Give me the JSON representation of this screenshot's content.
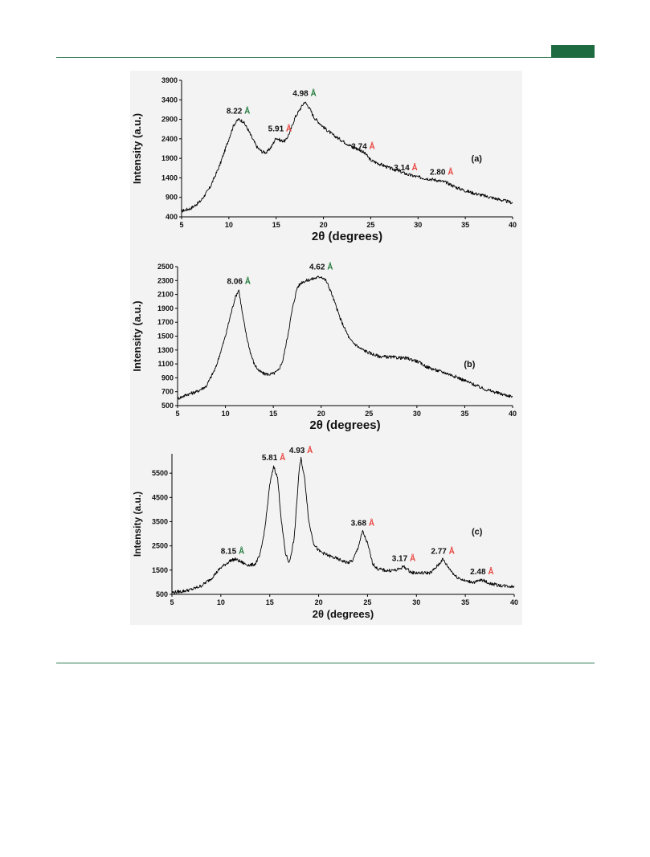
{
  "page": {
    "accent_color": "#1f6b41",
    "rule_color": "#2f7a52"
  },
  "chart_data": [
    {
      "type": "line",
      "panel_label": "(a)",
      "xlabel": "2θ (degrees)",
      "ylabel": "Intensity (a.u.)",
      "xlim": [
        5,
        40
      ],
      "ylim": [
        400,
        3900
      ],
      "xticks": [
        5,
        10,
        15,
        20,
        25,
        30,
        35,
        40
      ],
      "yticks": [
        400,
        900,
        1400,
        1900,
        2400,
        2900,
        3400,
        3900
      ],
      "grid": false,
      "series": [
        {
          "color": "#000000",
          "x": [
            5,
            6,
            7,
            8,
            9,
            10,
            10.5,
            11,
            11.5,
            12,
            12.5,
            13,
            13.5,
            14,
            14.5,
            15,
            15.5,
            16,
            16.5,
            17,
            17.5,
            18,
            18.5,
            19,
            20,
            21,
            22,
            23,
            24,
            24.5,
            25,
            26,
            27,
            28,
            29,
            30,
            31,
            32,
            33,
            34,
            35,
            36,
            37,
            38,
            39,
            40
          ],
          "y": [
            550,
            620,
            800,
            1150,
            1700,
            2400,
            2750,
            2900,
            2850,
            2650,
            2400,
            2180,
            2070,
            2050,
            2200,
            2430,
            2350,
            2350,
            2600,
            2950,
            3150,
            3350,
            3200,
            2950,
            2700,
            2500,
            2350,
            2200,
            2100,
            2000,
            1850,
            1750,
            1650,
            1570,
            1480,
            1420,
            1380,
            1340,
            1280,
            1160,
            1070,
            1000,
            940,
            880,
            820,
            760
          ]
        }
      ],
      "annotations": [
        {
          "x": 11,
          "y": 2900,
          "value": "8.22",
          "unit": "Å",
          "unit_color": "#1f7a3a"
        },
        {
          "x": 15.4,
          "y": 2450,
          "value": "5.91",
          "unit": "Å",
          "unit_color": "#e8403a"
        },
        {
          "x": 18,
          "y": 3350,
          "value": "4.98",
          "unit": "Å",
          "unit_color": "#1f7a3a"
        },
        {
          "x": 24.2,
          "y": 2000,
          "value": "3.74",
          "unit": "Å",
          "unit_color": "#e8403a"
        },
        {
          "x": 28.7,
          "y": 1450,
          "value": "3.14",
          "unit": "Å",
          "unit_color": "#e8403a"
        },
        {
          "x": 32.5,
          "y": 1340,
          "value": "2.80",
          "unit": "Å",
          "unit_color": "#e8403a"
        }
      ]
    },
    {
      "type": "line",
      "panel_label": "(b)",
      "xlabel": "2θ (degrees)",
      "ylabel": "Intensity (a.u.)",
      "xlim": [
        5,
        40
      ],
      "ylim": [
        500,
        2500
      ],
      "xticks": [
        5,
        10,
        15,
        20,
        25,
        30,
        35,
        40
      ],
      "yticks": [
        500,
        700,
        900,
        1100,
        1300,
        1500,
        1700,
        1900,
        2100,
        2300,
        2500
      ],
      "grid": false,
      "series": [
        {
          "color": "#000000",
          "x": [
            5,
            6,
            7,
            8,
            9,
            10,
            10.5,
            11,
            11.4,
            11.8,
            12.2,
            12.6,
            13,
            13.5,
            14,
            14.5,
            15,
            15.5,
            16,
            16.5,
            17,
            17.5,
            18,
            18.5,
            19,
            19.5,
            20,
            20.5,
            21,
            21.5,
            22,
            22.5,
            23,
            24,
            25,
            26,
            27,
            28,
            29,
            30,
            31,
            32,
            33,
            34,
            35,
            36,
            37,
            38,
            39,
            40
          ],
          "y": [
            600,
            660,
            700,
            780,
            1050,
            1500,
            1780,
            2050,
            2170,
            1800,
            1500,
            1270,
            1100,
            1000,
            960,
            950,
            960,
            1000,
            1150,
            1500,
            1900,
            2200,
            2280,
            2300,
            2320,
            2340,
            2360,
            2300,
            2150,
            1950,
            1750,
            1600,
            1450,
            1330,
            1260,
            1210,
            1200,
            1190,
            1180,
            1140,
            1060,
            1010,
            970,
            920,
            860,
            800,
            740,
            700,
            660,
            630
          ]
        }
      ],
      "annotations": [
        {
          "x": 11.4,
          "y": 2170,
          "value": "8.06",
          "unit": "Å",
          "unit_color": "#1f7a3a"
        },
        {
          "x": 20,
          "y": 2380,
          "value": "4.62",
          "unit": "Å",
          "unit_color": "#1f7a3a"
        }
      ]
    },
    {
      "type": "line",
      "panel_label": "(c)",
      "xlabel": "2θ (degrees)",
      "ylabel": "Intensity (a.u.)",
      "xlim": [
        5,
        40
      ],
      "ylim": [
        500,
        6300
      ],
      "xticks": [
        5,
        10,
        15,
        20,
        25,
        30,
        35,
        40
      ],
      "yticks": [
        500,
        1500,
        2500,
        3500,
        4500,
        5500
      ],
      "grid": false,
      "series": [
        {
          "color": "#000000",
          "x": [
            5,
            6,
            7,
            8,
            9,
            10,
            11,
            11.5,
            12,
            12.5,
            13,
            13.5,
            14,
            14.5,
            15,
            15.4,
            15.8,
            16.2,
            16.6,
            17,
            17.5,
            18,
            18.2,
            18.6,
            19,
            19.5,
            20,
            21,
            22,
            23,
            23.5,
            24,
            24.5,
            25,
            25.5,
            26,
            27,
            28,
            28.7,
            29.5,
            30.5,
            31.5,
            32.2,
            32.7,
            33.2,
            34,
            35,
            36,
            36.7,
            37.5,
            38.5,
            40
          ],
          "y": [
            580,
            620,
            700,
            850,
            1150,
            1600,
            1900,
            1950,
            1850,
            1750,
            1700,
            1750,
            2100,
            3200,
            5000,
            5800,
            5300,
            3500,
            2200,
            1800,
            2800,
            5600,
            6100,
            5200,
            3500,
            2600,
            2300,
            2100,
            1950,
            1800,
            1900,
            2400,
            3100,
            2600,
            1800,
            1550,
            1480,
            1500,
            1650,
            1400,
            1380,
            1400,
            1700,
            1950,
            1650,
            1250,
            1050,
            1000,
            1100,
            950,
            870,
            820
          ]
        }
      ],
      "annotations": [
        {
          "x": 11.2,
          "y": 1950,
          "value": "8.15",
          "unit": "Å",
          "unit_color": "#1f7a3a"
        },
        {
          "x": 15.4,
          "y": 5800,
          "value": "5.81",
          "unit": "Å",
          "unit_color": "#e8403a"
        },
        {
          "x": 18.2,
          "y": 6100,
          "value": "4.93",
          "unit": "Å",
          "unit_color": "#e8403a"
        },
        {
          "x": 24.5,
          "y": 3100,
          "value": "3.68",
          "unit": "Å",
          "unit_color": "#e8403a"
        },
        {
          "x": 28.7,
          "y": 1650,
          "value": "3.17",
          "unit": "Å",
          "unit_color": "#e8403a"
        },
        {
          "x": 32.7,
          "y": 1950,
          "value": "2.77",
          "unit": "Å",
          "unit_color": "#e8403a"
        },
        {
          "x": 36.7,
          "y": 1100,
          "value": "2.48",
          "unit": "Å",
          "unit_color": "#e8403a"
        }
      ]
    }
  ]
}
